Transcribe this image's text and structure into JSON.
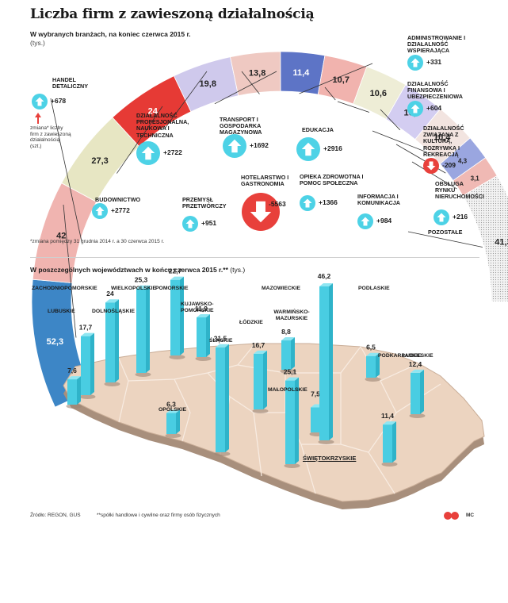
{
  "header": {
    "title": "Liczba firm z zawieszoną działalnością",
    "subtitle1": "W wybranych branżach, na koniec czerwca 2015 r.",
    "unit1": "(tys.)",
    "subtitle2_bold": "W poszczególnych województwach w końcu czerwca 2015 r.**",
    "subtitle2_unit": "(tys.)"
  },
  "legend": {
    "text": "zmiana* liczby firm z zawieszoną działalnością (szt.)"
  },
  "notes": {
    "change_period": "*zmiana pomiędzy 31 grudnia 2014 r. a 30 czerwca 2015 r.",
    "source": "Źródło: REGON, GUS",
    "footnote2": "**spółki handlowe i cywilne oraz firmy osób fizycznych",
    "credit": "MC"
  },
  "colors": {
    "cyan": "#4dd2e6",
    "red": "#e8403b"
  },
  "chart_data": [
    {
      "type": "arc-bar",
      "title": "Liczba firm z zawieszoną działalnością w wybranych branżach (tys.)",
      "categories": [
        "Budownictwo",
        "Handel detaliczny",
        "Działalność profesjonalna, naukowa i techniczna",
        "Przemysł przetwórczy",
        "Hotelarstwo i gastronomia",
        "Transport i gospodarka magazynowa",
        "Administrowanie i działalność wspierająca",
        "Edukacja",
        "Opieka zdrowotna i pomoc społeczna",
        "Działalność finansowa i ubezpieczeniowa",
        "Informacja i komunikacja",
        "Działalność związana z kulturą, rozrywką i rekreacją",
        "Obsługa rynku nieruchomości",
        "Pozostałe"
      ],
      "values": [
        "52,3",
        "42",
        "27,3",
        "24",
        "19,8",
        "13,8",
        "11,4",
        "10,7",
        "10,6",
        "10,5",
        "10,4",
        "4,3",
        "3,1",
        "41,3"
      ],
      "segments": [
        {
          "label": "BUDOWNICTWO",
          "value": "52,3",
          "change": "+2772",
          "color": "#3d86c6"
        },
        {
          "label": "HANDEL DETALICZNY",
          "value": "42",
          "change": "+678",
          "color": "#f0b4b0"
        },
        {
          "label": "DZIAŁALNOŚĆ PROFESJONALNA, NAUKOWA I TECHNICZNA",
          "value": "27,3",
          "change": "+2722",
          "color": "#e7e6c3"
        },
        {
          "label": "PRZEMYSŁ PRZETWÓRCZY",
          "value": "24",
          "change": "+951",
          "color": "#e63a35"
        },
        {
          "label": "HOTELARSTWO I GASTRONOMIA",
          "value": "19,8",
          "change": "-5563",
          "color": "#cfc9ec"
        },
        {
          "label": "TRANSPORT I GOSPODARKA MAGAZYNOWA",
          "value": "13,8",
          "change": "+1692",
          "color": "#efc9c2"
        },
        {
          "label": "ADMINISTROWANIE I DZIAŁALNOŚĆ WSPIERAJĄCA",
          "value": "11,4",
          "change": "+331",
          "color": "#5d74c6"
        },
        {
          "label": "EDUKACJA",
          "value": "10,7",
          "change": "+2916",
          "color": "#f1b3ae"
        },
        {
          "label": "OPIEKA ZDROWOTNA I POMOC SPOŁECZNA",
          "value": "10,6",
          "change": "+1366",
          "color": "#eeedd6"
        },
        {
          "label": "DZIAŁALNOŚĆ FINANSOWA I UBEZPIECZENIOWA",
          "value": "10,5",
          "change": "+604",
          "color": "#d3cdf1"
        },
        {
          "label": "INFORMACJA I KOMUNIKACJA",
          "value": "10,4",
          "change": "+984",
          "color": "#f2e4e0"
        },
        {
          "label": "DZIAŁALNOŚĆ ZWIĄZANA Z KULTURĄ, ROZRYWKĄ I REKREACJĄ",
          "value": "4,3",
          "change": "-209",
          "color": "#9aa6e0"
        },
        {
          "label": "OBSŁUGA RYNKU NIERUCHOMOŚCI",
          "value": "3,1",
          "change": "+216",
          "color": "#f0b9b4"
        },
        {
          "label": "POZOSTAŁE",
          "value": "41,3",
          "change": "",
          "color": "#e4e4e4"
        }
      ]
    },
    {
      "type": "bar3d-map",
      "title": "Liczba firm z zawieszoną działalnością w województwach (tys.)",
      "categories": [
        "ZACHODNIOPOMORSKIE",
        "LUBUSKIE",
        "WIELKOPOLSKIE",
        "DOLNOŚLĄSKIE",
        "POMORSKIE",
        "KUJAWSKO-POMORSKIE",
        "ŚLĄSKIE",
        "OPOLSKIE",
        "ŁÓDZKIE",
        "WARMIŃSKO-MAZURSKIE",
        "MAŁOPOLSKIE",
        "ŚWIĘTOKRZYSKIE",
        "MAZOWIECKIE",
        "PODLASKIE",
        "PODKARPACKIE",
        "LUBELSKIE"
      ],
      "values": [
        "17,7",
        "7,6",
        "25,3",
        "24",
        "22,7",
        "11,9",
        "31,5",
        "6,3",
        "16,7",
        "8,8",
        "25,1",
        "7,5",
        "46,2",
        "6,5",
        "11,4",
        "12,4"
      ]
    }
  ]
}
